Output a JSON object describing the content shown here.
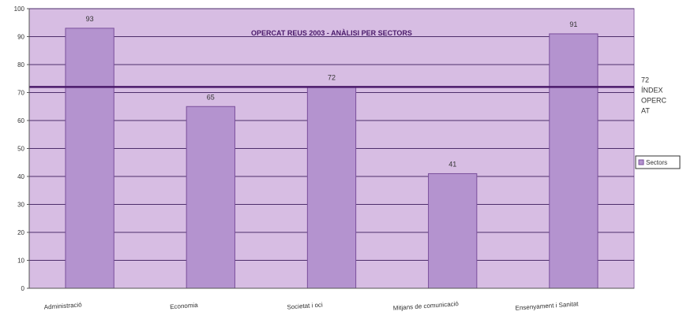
{
  "chart_data": {
    "type": "bar",
    "title": "OPERCAT REUS 2003 - ANÀLISI PER SECTORS",
    "categories": [
      "Administració",
      "Economia",
      "Societat i oci",
      "Mitjans de comunicació",
      "Ensenyament i Sanitat"
    ],
    "series": [
      {
        "name": "Sectors",
        "values": [
          93,
          65,
          72,
          41,
          91
        ]
      }
    ],
    "data_labels": [
      "93",
      "65",
      "72",
      "41",
      "91"
    ],
    "reference_line": {
      "value": 72,
      "label_lines": [
        "72",
        "ÍNDEX",
        "OPERC",
        "AT"
      ]
    },
    "yticks": [
      0,
      10,
      20,
      30,
      40,
      50,
      60,
      70,
      80,
      90,
      100
    ],
    "ylim": [
      0,
      100
    ],
    "xlabel": "",
    "ylabel": "",
    "grid": true,
    "legend": {
      "position": "right",
      "entries": [
        "Sectors"
      ]
    },
    "colors": {
      "plot_bg": "#d7bde3",
      "bar_fill": "#b493cf",
      "bar_edge": "#7a4f9c",
      "grid": "#4d2e6b",
      "ref_line": "#4a1a6a"
    }
  }
}
